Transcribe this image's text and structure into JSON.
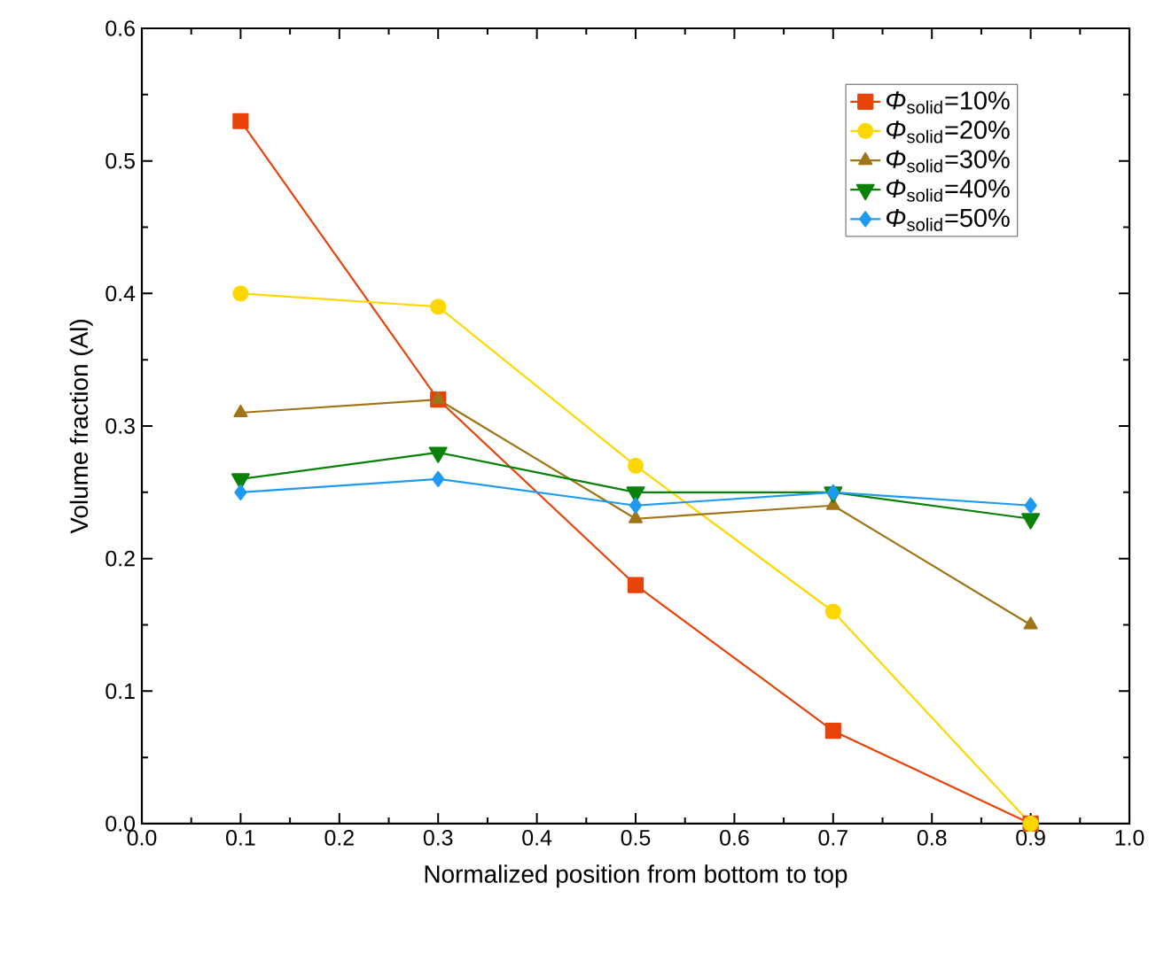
{
  "chart_data": {
    "type": "line",
    "xlabel": "Normalized position from bottom to top",
    "ylabel": "Volume fraction (Al)",
    "x": [
      0.1,
      0.3,
      0.5,
      0.7,
      0.9
    ],
    "series": [
      {
        "name": "*Φ*$_{solid}$=10%",
        "color": "#e8440a",
        "marker": "square",
        "values": [
          0.53,
          0.32,
          0.18,
          0.07,
          0.0
        ]
      },
      {
        "name": "*Φ*$_{solid}$=20%",
        "color": "#ffd700",
        "marker": "circle",
        "values": [
          0.4,
          0.39,
          0.27,
          0.16,
          0.0
        ]
      },
      {
        "name": "*Φ*$_{solid}$=30%",
        "color": "#a0751a",
        "marker": "triangle",
        "values": [
          0.31,
          0.32,
          0.23,
          0.24,
          0.15
        ]
      },
      {
        "name": "*Φ*$_{solid}$=40%",
        "color": "#0a820a",
        "marker": "triangle down",
        "values": [
          0.26,
          0.28,
          0.25,
          0.25,
          0.23
        ]
      },
      {
        "name": "*Φ*$_{solid}$=50%",
        "color": "#1e9bf0",
        "marker": "diamond",
        "values": [
          0.25,
          0.26,
          0.24,
          0.25,
          0.24
        ]
      }
    ],
    "xlim": [
      0,
      1
    ],
    "xticks": [
      {
        "value": 0,
        "label": "0.0"
      },
      {
        "value": 0.1,
        "label": "0.1"
      },
      {
        "value": 0.2,
        "label": "0.2"
      },
      {
        "value": 0.3,
        "label": "0.3"
      },
      {
        "value": 0.4,
        "label": "0.4"
      },
      {
        "value": 0.5,
        "label": "0.5"
      },
      {
        "value": 0.6,
        "label": "0.6"
      },
      {
        "value": 0.7,
        "label": "0.7"
      },
      {
        "value": 0.8,
        "label": "0.8"
      },
      {
        "value": 0.9,
        "label": "0.9"
      },
      {
        "value": 1,
        "label": "1.0"
      }
    ],
    "ylim": [
      0,
      0.6
    ],
    "yticks": [
      {
        "value": 0,
        "label": "0.0"
      },
      {
        "value": 0.1,
        "label": "0.1"
      },
      {
        "value": 0.2,
        "label": "0.2"
      },
      {
        "value": 0.3,
        "label": "0.3"
      },
      {
        "value": 0.4,
        "label": "0.4"
      },
      {
        "value": 0.5,
        "label": "0.5"
      },
      {
        "value": 0.6,
        "label": "0.6"
      }
    ],
    "legend": "top right",
    "grid": false
  }
}
